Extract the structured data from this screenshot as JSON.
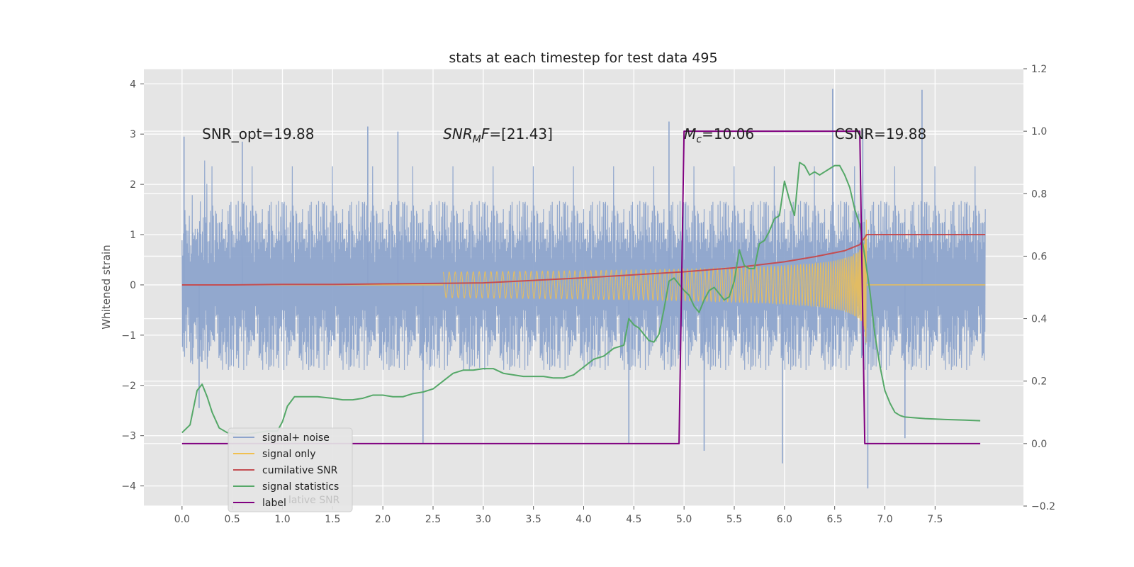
{
  "chart_data": {
    "type": "line",
    "title": "stats at each timestep for test data 495",
    "ylabel": "Whitened strain",
    "y2label": "",
    "xlim": [
      -0.38,
      8.38
    ],
    "ylim": [
      -4.4,
      4.3
    ],
    "y2lim": [
      -0.2,
      1.2
    ],
    "grid": true,
    "x_ticks": [
      "0.0",
      "0.5",
      "1.0",
      "1.5",
      "2.0",
      "2.5",
      "3.0",
      "3.5",
      "4.0",
      "4.5",
      "5.0",
      "5.5",
      "6.0",
      "6.5",
      "7.0",
      "7.5"
    ],
    "y_ticks": [
      "4",
      "3",
      "2",
      "1",
      "0",
      "−1",
      "−2",
      "−3",
      "−4"
    ],
    "y2_ticks": [
      "1.2",
      "1.0",
      "0.8",
      "0.6",
      "0.4",
      "0.2",
      "0.0",
      "−0.2"
    ],
    "annotations": [
      {
        "name": "snr-opt",
        "text": "SNR_opt=19.88",
        "x": 0.2,
        "y": 3.0
      },
      {
        "name": "snr-mf",
        "text": "=[21.43]",
        "math_base": "SNR",
        "math_sub": "M",
        "math_tail": "F",
        "x": 2.6,
        "y": 3.0
      },
      {
        "name": "chirp-mass",
        "text": "=10.06",
        "math_base": "M",
        "math_sub": "c",
        "x": 5.0,
        "y": 3.0
      },
      {
        "name": "csnr",
        "text": "CSNR=19.88",
        "x": 6.5,
        "y": 3.0
      }
    ],
    "legend": {
      "placement": "lower-left",
      "entries": [
        {
          "label": "signal+ noise",
          "color": "#8da4cc"
        },
        {
          "label": "signal only",
          "color": "#f0c050"
        },
        {
          "label": "cumilative SNR",
          "color": "#c44e52"
        },
        {
          "label": "signal statistics",
          "color": "#55a868"
        },
        {
          "label": "label",
          "color": "#800080"
        }
      ],
      "ghost_text": "lative SNR"
    },
    "series": [
      {
        "name": "signal+ noise",
        "axis": "left",
        "color": "#8da4cc",
        "kind": "noise",
        "x_range": [
          0.0,
          8.0
        ],
        "envelope_upper": 1.7,
        "envelope_lower": -1.7,
        "peaks": [
          {
            "x": 0.02,
            "y": 2.95
          },
          {
            "x": 0.6,
            "y": 2.85
          },
          {
            "x": 1.85,
            "y": 3.15
          },
          {
            "x": 2.15,
            "y": 3.05
          },
          {
            "x": 4.85,
            "y": 3.25
          },
          {
            "x": 6.48,
            "y": 3.9
          },
          {
            "x": 7.37,
            "y": 3.88
          },
          {
            "x": 6.78,
            "y": 3.1
          }
        ],
        "troughs": [
          {
            "x": 0.17,
            "y": -2.45
          },
          {
            "x": 2.4,
            "y": -3.15
          },
          {
            "x": 4.45,
            "y": -3.15
          },
          {
            "x": 5.2,
            "y": -3.3
          },
          {
            "x": 5.98,
            "y": -3.55
          },
          {
            "x": 6.83,
            "y": -4.05
          },
          {
            "x": 7.2,
            "y": -3.05
          }
        ]
      },
      {
        "name": "signal only",
        "axis": "left",
        "color": "#f0c050",
        "kind": "chirp",
        "x_range": [
          0.0,
          8.0
        ],
        "merger_x": 6.82,
        "peak_amplitude": 2.65
      },
      {
        "name": "cumilative SNR",
        "axis": "left",
        "color": "#c44e52",
        "x": [
          0.0,
          0.5,
          1.0,
          1.5,
          2.0,
          2.5,
          3.0,
          3.5,
          4.0,
          4.5,
          5.0,
          5.5,
          6.0,
          6.3,
          6.6,
          6.75,
          6.82,
          7.0,
          7.5,
          8.0
        ],
        "y": [
          0.0,
          0.0,
          0.01,
          0.01,
          0.02,
          0.03,
          0.04,
          0.09,
          0.14,
          0.2,
          0.26,
          0.34,
          0.46,
          0.56,
          0.68,
          0.8,
          1.0,
          1.0,
          1.0,
          1.0
        ]
      },
      {
        "name": "signal statistics",
        "axis": "right",
        "color": "#55a868",
        "x": [
          0.0,
          0.08,
          0.15,
          0.2,
          0.25,
          0.3,
          0.37,
          0.45,
          0.55,
          0.65,
          0.75,
          0.85,
          0.95,
          1.0,
          1.05,
          1.12,
          1.2,
          1.35,
          1.5,
          1.6,
          1.7,
          1.8,
          1.9,
          2.0,
          2.1,
          2.2,
          2.3,
          2.4,
          2.5,
          2.6,
          2.7,
          2.8,
          2.9,
          3.0,
          3.1,
          3.2,
          3.4,
          3.6,
          3.7,
          3.8,
          3.9,
          4.0,
          4.1,
          4.2,
          4.3,
          4.4,
          4.45,
          4.5,
          4.55,
          4.6,
          4.65,
          4.7,
          4.75,
          4.8,
          4.85,
          4.9,
          4.95,
          5.0,
          5.05,
          5.1,
          5.15,
          5.2,
          5.25,
          5.3,
          5.35,
          5.4,
          5.45,
          5.5,
          5.55,
          5.6,
          5.65,
          5.7,
          5.75,
          5.8,
          5.85,
          5.9,
          5.95,
          6.0,
          6.05,
          6.1,
          6.15,
          6.2,
          6.25,
          6.3,
          6.35,
          6.4,
          6.45,
          6.5,
          6.55,
          6.6,
          6.65,
          6.7,
          6.75,
          6.8,
          6.85,
          6.9,
          6.95,
          7.0,
          7.05,
          7.1,
          7.15,
          7.2,
          7.4,
          7.6,
          7.8,
          7.95
        ],
        "y": [
          0.035,
          0.06,
          0.17,
          0.19,
          0.15,
          0.1,
          0.05,
          0.035,
          0.03,
          0.03,
          0.035,
          0.04,
          0.04,
          0.07,
          0.12,
          0.15,
          0.15,
          0.15,
          0.145,
          0.14,
          0.14,
          0.145,
          0.155,
          0.155,
          0.15,
          0.15,
          0.16,
          0.165,
          0.175,
          0.2,
          0.225,
          0.235,
          0.235,
          0.24,
          0.24,
          0.225,
          0.215,
          0.215,
          0.21,
          0.21,
          0.22,
          0.245,
          0.27,
          0.28,
          0.305,
          0.315,
          0.4,
          0.38,
          0.37,
          0.35,
          0.33,
          0.325,
          0.35,
          0.43,
          0.52,
          0.53,
          0.51,
          0.49,
          0.475,
          0.44,
          0.42,
          0.46,
          0.49,
          0.5,
          0.48,
          0.46,
          0.47,
          0.52,
          0.62,
          0.57,
          0.56,
          0.56,
          0.64,
          0.65,
          0.68,
          0.72,
          0.73,
          0.84,
          0.78,
          0.73,
          0.9,
          0.89,
          0.86,
          0.87,
          0.86,
          0.87,
          0.88,
          0.89,
          0.89,
          0.86,
          0.82,
          0.75,
          0.7,
          0.6,
          0.49,
          0.35,
          0.25,
          0.17,
          0.13,
          0.1,
          0.09,
          0.085,
          0.08,
          0.077,
          0.075,
          0.073
        ]
      },
      {
        "name": "label",
        "axis": "right",
        "color": "#800080",
        "x": [
          0.0,
          4.95,
          5.0,
          6.75,
          6.8,
          7.95
        ],
        "y": [
          0.0,
          0.0,
          1.0,
          1.0,
          0.0,
          0.0
        ]
      }
    ]
  }
}
